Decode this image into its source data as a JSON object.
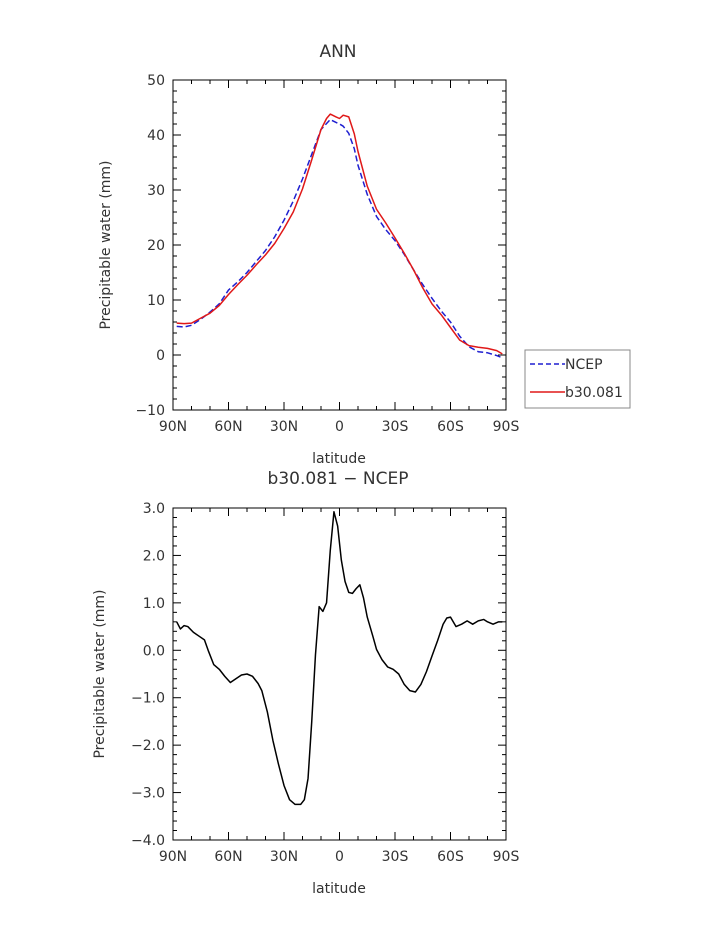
{
  "chart_data": [
    {
      "type": "line",
      "title": "ANN",
      "xlabel": "latitude",
      "ylabel": "Precipitable water (mm)",
      "xlim": [
        90,
        -90
      ],
      "ylim": [
        -10,
        50
      ],
      "x_ticks": [
        90,
        60,
        30,
        0,
        -30,
        -60,
        -90
      ],
      "x_tick_labels": [
        "90N",
        "60N",
        "30N",
        "0",
        "30S",
        "60S",
        "90S"
      ],
      "y_ticks": [
        -10,
        0,
        10,
        20,
        30,
        40,
        50
      ],
      "y_tick_labels": [
        "−10",
        "0",
        "10",
        "20",
        "30",
        "40",
        "50"
      ],
      "legend_position": "right",
      "series": [
        {
          "name": "NCEP",
          "color": "#1f1fd0",
          "dash": "dashed",
          "x": [
            88,
            84,
            80,
            75,
            70,
            65,
            60,
            55,
            50,
            45,
            40,
            35,
            30,
            25,
            20,
            15,
            10,
            5,
            2,
            0,
            -2,
            -5,
            -8,
            -10,
            -15,
            -20,
            -25,
            -30,
            -35,
            -40,
            -45,
            -50,
            -55,
            -60,
            -65,
            -70,
            -75,
            -80,
            -85,
            -88
          ],
          "y": [
            5.2,
            5.1,
            5.4,
            6.5,
            7.8,
            9.3,
            11.8,
            13.3,
            15.0,
            17.0,
            19.0,
            21.5,
            24.5,
            28.0,
            32.0,
            36.5,
            41.0,
            42.8,
            42.3,
            42.0,
            41.6,
            40.3,
            37.5,
            34.5,
            29.2,
            25.2,
            22.8,
            20.8,
            18.3,
            15.5,
            12.8,
            10.3,
            8.0,
            6.0,
            3.4,
            1.5,
            0.6,
            0.4,
            -0.1,
            -0.5
          ]
        },
        {
          "name": "b30.081",
          "color": "#e01818",
          "dash": "solid",
          "x": [
            88,
            84,
            80,
            75,
            70,
            65,
            60,
            55,
            50,
            45,
            40,
            35,
            30,
            25,
            20,
            15,
            10,
            7,
            5,
            2,
            0,
            -2,
            -5,
            -8,
            -10,
            -15,
            -20,
            -25,
            -30,
            -35,
            -40,
            -45,
            -50,
            -55,
            -60,
            -65,
            -70,
            -75,
            -80,
            -85,
            -88
          ],
          "y": [
            5.8,
            5.7,
            5.8,
            6.7,
            7.6,
            9.0,
            11.0,
            12.8,
            14.5,
            16.4,
            18.2,
            20.3,
            23.0,
            26.0,
            30.2,
            35.5,
            41.0,
            43.0,
            43.8,
            43.3,
            43.0,
            43.6,
            43.3,
            40.2,
            37.0,
            30.7,
            26.5,
            24.0,
            21.3,
            18.5,
            15.5,
            12.2,
            9.3,
            7.3,
            5.0,
            2.7,
            1.7,
            1.4,
            1.2,
            0.8,
            0.2
          ]
        }
      ]
    },
    {
      "type": "line",
      "title": "b30.081 − NCEP",
      "xlabel": "latitude",
      "ylabel": "Precipitable water (mm)",
      "xlim": [
        90,
        -90
      ],
      "ylim": [
        -4,
        3
      ],
      "x_ticks": [
        90,
        60,
        30,
        0,
        -30,
        -60,
        -90
      ],
      "x_tick_labels": [
        "90N",
        "60N",
        "30N",
        "0",
        "30S",
        "60S",
        "90S"
      ],
      "y_ticks": [
        -4,
        -3,
        -2,
        -1,
        0,
        1,
        2,
        3
      ],
      "y_tick_labels": [
        "−4.0",
        "−3.0",
        "−2.0",
        "−1.0",
        "0.0",
        "1.0",
        "2.0",
        "3.0"
      ],
      "series": [
        {
          "color": "#000000",
          "dash": "solid",
          "x": [
            88,
            86,
            84,
            82,
            79,
            76,
            73,
            71,
            68,
            65,
            62,
            59,
            56,
            53,
            50,
            47,
            44,
            42,
            39,
            36,
            33,
            30,
            27,
            24,
            21,
            19,
            17,
            15,
            13,
            11,
            9,
            7,
            5,
            3,
            1,
            -1,
            -3,
            -5,
            -7,
            -9,
            -11,
            -13,
            -15,
            -18,
            -20,
            -23,
            -26,
            -29,
            -32,
            -35,
            -38,
            -41,
            -44,
            -47,
            -50,
            -53,
            -56,
            -58,
            -60,
            -63,
            -66,
            -69,
            -72,
            -75,
            -78,
            -80,
            -83,
            -86,
            -88
          ],
          "y": [
            0.6,
            0.45,
            0.52,
            0.5,
            0.38,
            0.3,
            0.22,
            0.0,
            -0.3,
            -0.4,
            -0.55,
            -0.68,
            -0.6,
            -0.52,
            -0.5,
            -0.55,
            -0.7,
            -0.85,
            -1.3,
            -1.9,
            -2.4,
            -2.85,
            -3.15,
            -3.25,
            -3.25,
            -3.15,
            -2.7,
            -1.5,
            -0.1,
            0.92,
            0.82,
            1.0,
            2.1,
            2.92,
            2.62,
            1.9,
            1.45,
            1.22,
            1.2,
            1.3,
            1.38,
            1.1,
            0.7,
            0.3,
            0.02,
            -0.2,
            -0.35,
            -0.4,
            -0.5,
            -0.72,
            -0.85,
            -0.88,
            -0.72,
            -0.45,
            -0.12,
            0.2,
            0.55,
            0.68,
            0.7,
            0.5,
            0.55,
            0.62,
            0.55,
            0.62,
            0.65,
            0.6,
            0.55,
            0.6,
            0.6
          ]
        }
      ]
    }
  ]
}
